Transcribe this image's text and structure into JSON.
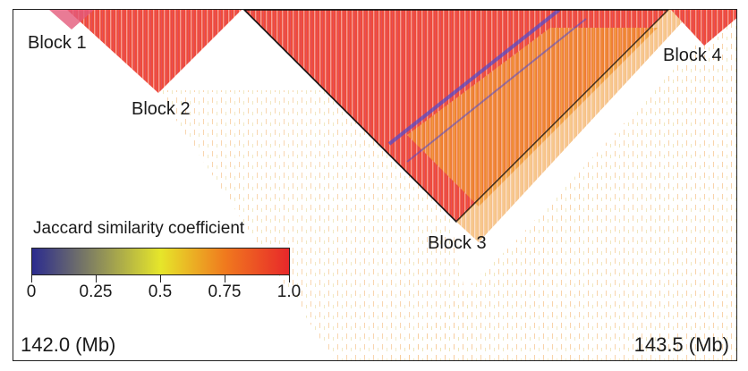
{
  "figure": {
    "blocks": [
      {
        "label": "Block 1"
      },
      {
        "label": "Block 2"
      },
      {
        "label": "Block 3"
      },
      {
        "label": "Block 4"
      }
    ],
    "axis": {
      "left_label": "142.0 (Mb)",
      "right_label": "143.5 (Mb)"
    },
    "legend": {
      "title": "Jaccard similarity coefficient",
      "ticks": [
        "0",
        "0.25",
        "0.5",
        "0.75",
        "1.0"
      ],
      "colors": [
        "#2b2b8f",
        "#e6e62a",
        "#f07a1e",
        "#e8282a"
      ]
    }
  }
}
